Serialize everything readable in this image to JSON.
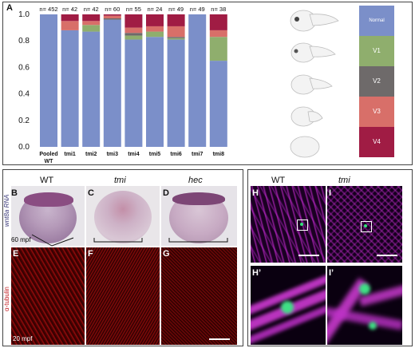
{
  "panel_letters": {
    "A": "A",
    "B": "B",
    "C": "C",
    "D": "D",
    "E": "E",
    "F": "F",
    "G": "G",
    "H": "H",
    "I": "I",
    "Hp": "H’",
    "Ip": "I’"
  },
  "chart_data": {
    "type": "bar",
    "stacked": true,
    "categories": [
      "Pooled WT",
      "tmi1",
      "tmi2",
      "tmi3",
      "tmi4",
      "tmi5",
      "tmi6",
      "tmi7",
      "tmi8"
    ],
    "n_labels": [
      "n= 452",
      "n= 42",
      "n= 42",
      "n= 60",
      "n= 55",
      "n= 24",
      "n= 49",
      "n= 49",
      "n= 38"
    ],
    "series": [
      {
        "name": "Normal",
        "color": "#7b8fc9",
        "values": [
          1.0,
          0.88,
          0.87,
          0.96,
          0.81,
          0.83,
          0.81,
          1.0,
          0.65
        ]
      },
      {
        "name": "V1",
        "color": "#8fae6d",
        "values": [
          0.0,
          0.0,
          0.05,
          0.0,
          0.03,
          0.04,
          0.01,
          0.0,
          0.18
        ]
      },
      {
        "name": "V2",
        "color": "#6e6a6a",
        "values": [
          0.0,
          0.0,
          0.0,
          0.01,
          0.02,
          0.0,
          0.01,
          0.0,
          0.0
        ]
      },
      {
        "name": "V3",
        "color": "#d86f69",
        "values": [
          0.0,
          0.07,
          0.03,
          0.02,
          0.04,
          0.04,
          0.08,
          0.0,
          0.05
        ]
      },
      {
        "name": "V4",
        "color": "#a01c44",
        "values": [
          0.0,
          0.05,
          0.05,
          0.01,
          0.1,
          0.09,
          0.09,
          0.0,
          0.12
        ]
      }
    ],
    "yticks": [
      "0.0",
      "0.2",
      "0.4",
      "0.6",
      "0.8",
      "1.0"
    ],
    "ylim": [
      0,
      1
    ]
  },
  "legend": {
    "normal": "Normal",
    "v1": "V1",
    "v2": "V2",
    "v3": "V3",
    "v4": "V4"
  },
  "lower": {
    "wt": "WT",
    "tmi": "tmi",
    "hec": "hec",
    "wnt_label": "wnt8a RNA",
    "tubulin_label": "α-tubulin",
    "mpf60": "60 mpf",
    "mpf20": "20 mpf",
    "right_label_tub": "α-tubulin",
    "right_label_rna": "wnt8a RNA",
    "right_wt": "WT",
    "right_tmi": "tmi"
  }
}
